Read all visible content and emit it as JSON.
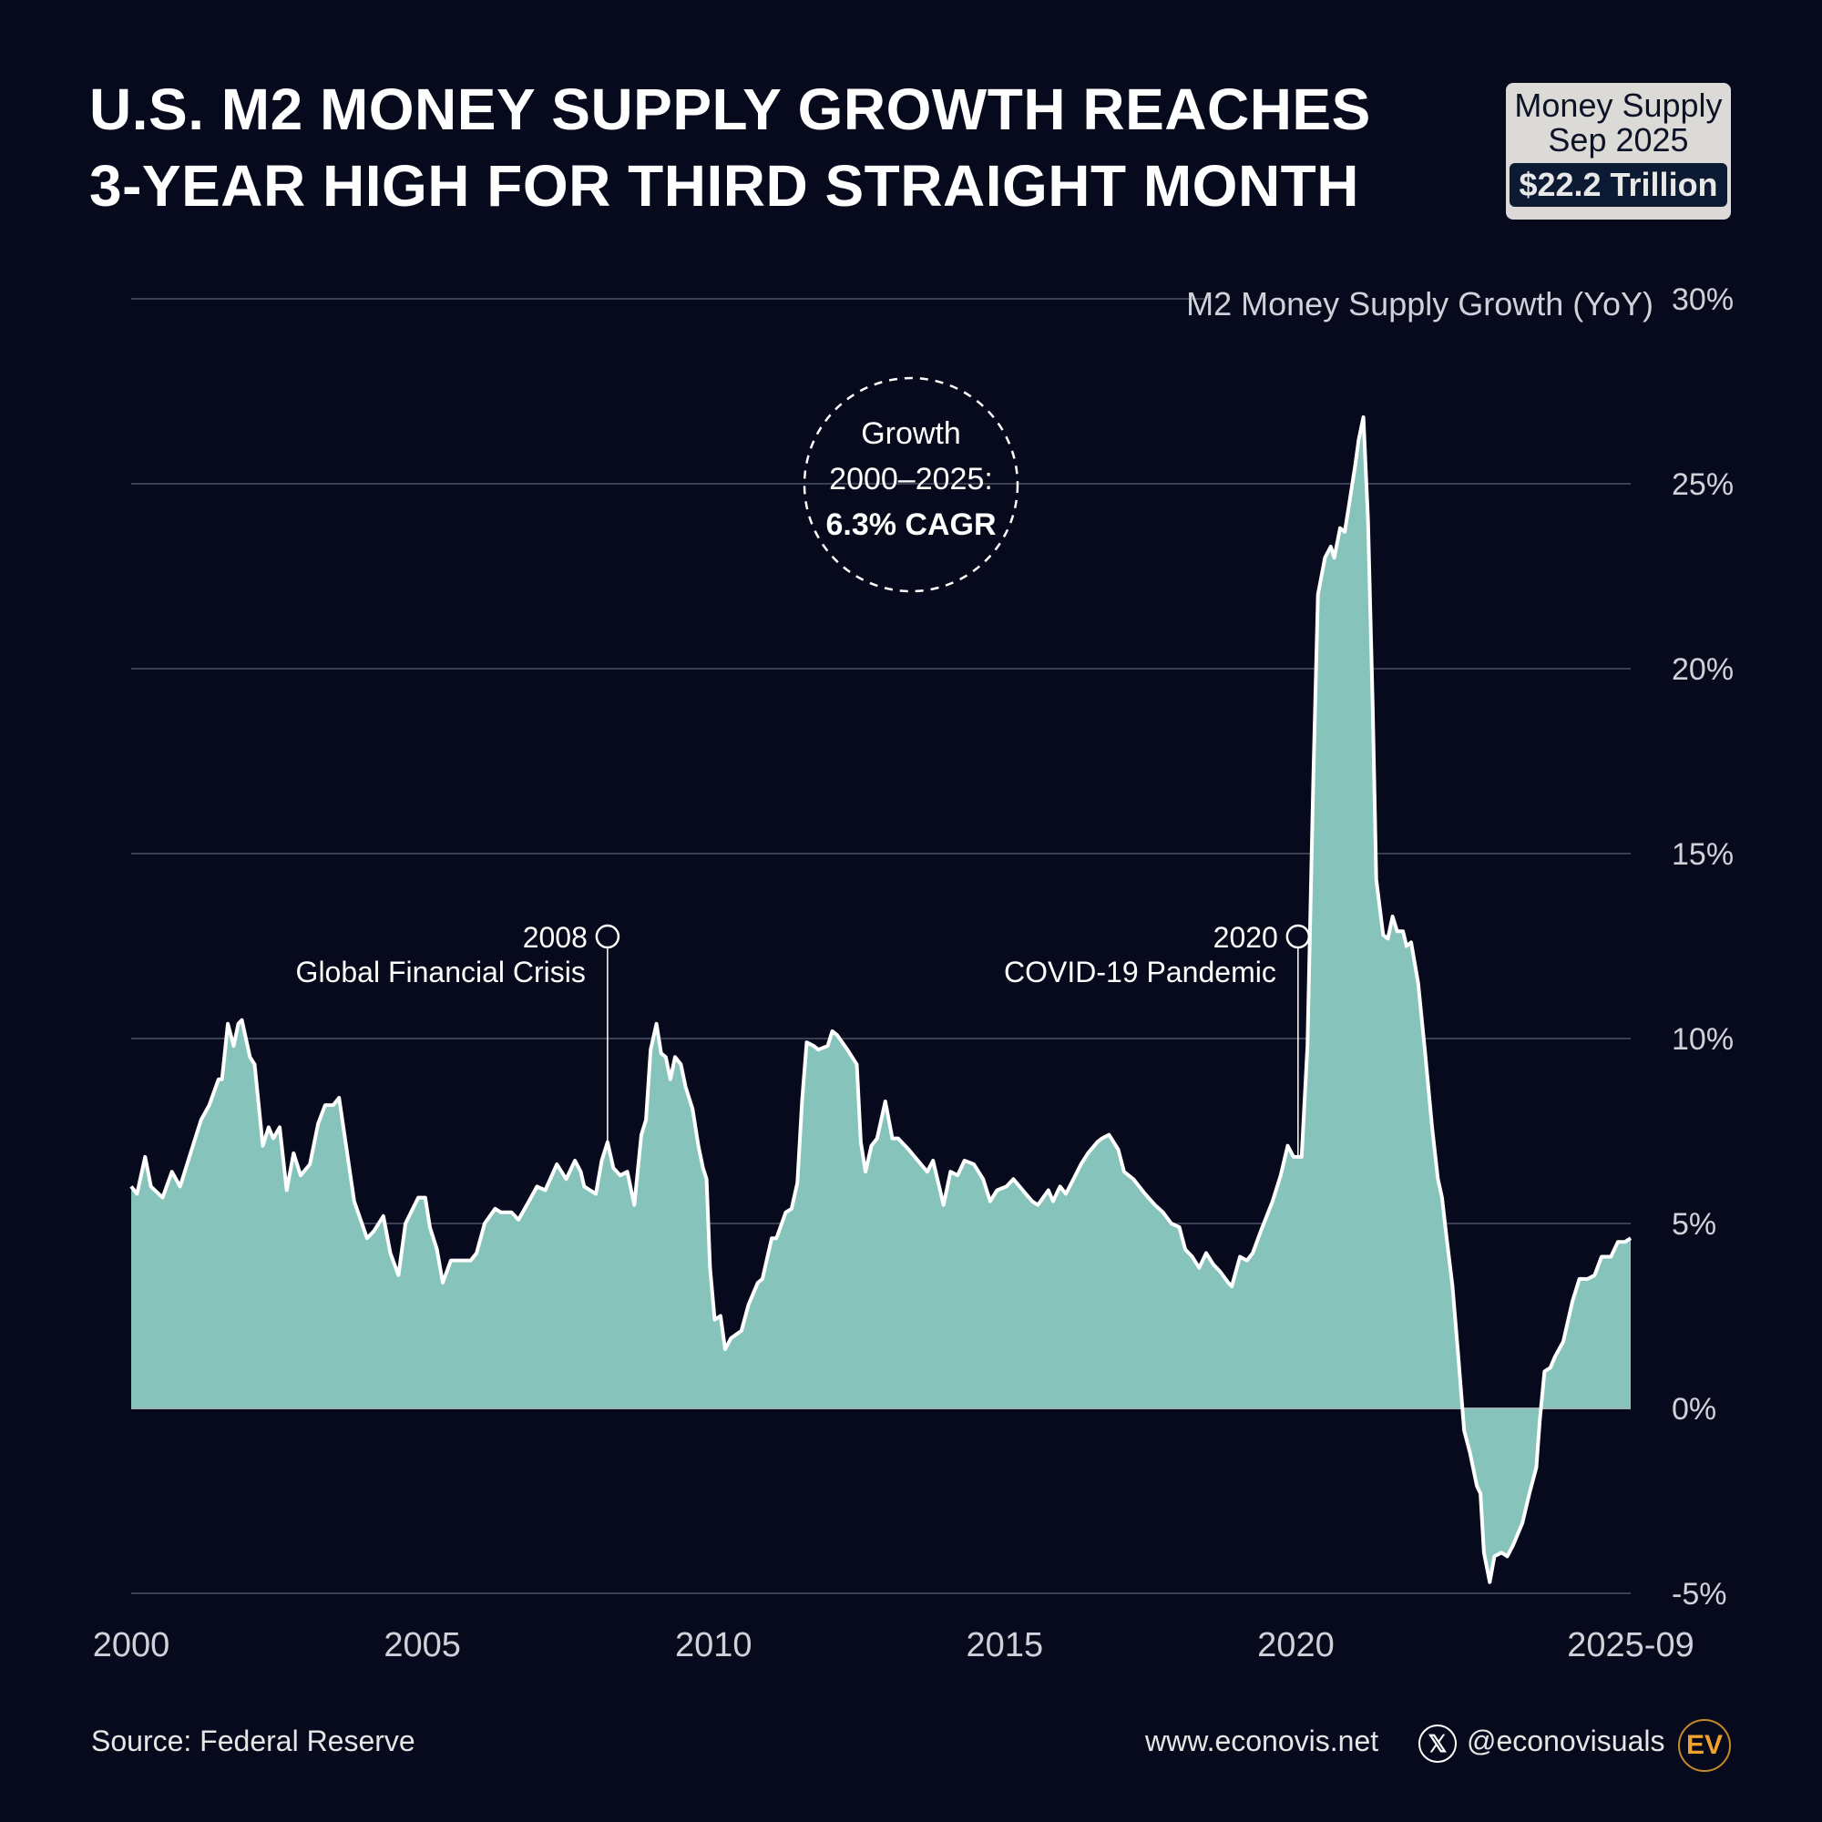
{
  "title": {
    "line1": "U.S. M2 MONEY SUPPLY GROWTH REACHES",
    "line2": "3-YEAR HIGH FOR THIRD STRAIGHT MONTH"
  },
  "badge": {
    "line1": "Money Supply",
    "line2": "Sep 2025",
    "value": "$22.2 Trillion"
  },
  "callout": {
    "line1": "Growth",
    "line2": "2000–2025:",
    "highlight": "6.3% CAGR",
    "highlight_color": "#e0161b"
  },
  "annotations": [
    {
      "year_label": "2008",
      "text": "Global Financial Crisis",
      "x": 2008.18
    },
    {
      "year_label": "2020",
      "text": "COVID-19 Pandemic",
      "x": 2020.1
    }
  ],
  "footer": {
    "source": "Source: Federal Reserve",
    "website": "www.econovis.net",
    "handle": "@econovisuals",
    "logo": "EV"
  },
  "colors": {
    "background": "#060a1c",
    "area_fill": "#86c3bb",
    "line": "#ffffff"
  },
  "chart_data": {
    "type": "area",
    "ylabel": "M2 Money Supply Growth (YoY)",
    "ylim": [
      -5,
      30
    ],
    "yticks": [
      -5,
      0,
      5,
      10,
      15,
      20,
      25,
      30
    ],
    "ytick_labels": [
      "-5%",
      "0%",
      "5%",
      "10%",
      "15%",
      "20%",
      "25%",
      "30%"
    ],
    "xlim": [
      2000,
      2025.75
    ],
    "xticks": [
      2000,
      2005,
      2010,
      2015,
      2020,
      2025.75
    ],
    "xtick_labels": [
      "2000",
      "2005",
      "2010",
      "2015",
      "2020",
      "2025-09"
    ],
    "grid": true,
    "x": [
      2000.0,
      2000.1,
      2000.24,
      2000.34,
      2000.54,
      2000.7,
      2000.84,
      2001.0,
      2001.2,
      2001.34,
      2001.5,
      2001.56,
      2001.66,
      2001.76,
      2001.84,
      2001.9,
      2002.04,
      2002.12,
      2002.26,
      2002.36,
      2002.44,
      2002.55,
      2002.67,
      2002.79,
      2002.91,
      2003.07,
      2003.21,
      2003.33,
      2003.47,
      2003.57,
      2003.83,
      2004.05,
      2004.17,
      2004.33,
      2004.45,
      2004.59,
      2004.71,
      2004.93,
      2005.05,
      2005.13,
      2005.25,
      2005.35,
      2005.49,
      2005.73,
      2005.83,
      2005.93,
      2006.07,
      2006.25,
      2006.35,
      2006.53,
      2006.65,
      2006.83,
      2006.97,
      2007.11,
      2007.31,
      2007.47,
      2007.62,
      2007.72,
      2007.78,
      2007.98,
      2008.08,
      2008.18,
      2008.28,
      2008.4,
      2008.52,
      2008.64,
      2008.76,
      2008.84,
      2008.92,
      2009.02,
      2009.1,
      2009.18,
      2009.26,
      2009.34,
      2009.44,
      2009.52,
      2009.64,
      2009.74,
      2009.82,
      2009.88,
      2009.94,
      2010.02,
      2010.12,
      2010.2,
      2010.3,
      2010.48,
      2010.6,
      2010.76,
      2010.84,
      2011.0,
      2011.08,
      2011.24,
      2011.34,
      2011.44,
      2011.52,
      2011.6,
      2011.72,
      2011.8,
      2011.96,
      2012.04,
      2012.12,
      2012.3,
      2012.46,
      2012.53,
      2012.61,
      2012.71,
      2012.81,
      2012.95,
      2013.07,
      2013.17,
      2013.35,
      2013.51,
      2013.67,
      2013.77,
      2013.95,
      2014.07,
      2014.19,
      2014.31,
      2014.47,
      2014.63,
      2014.75,
      2014.87,
      2015.03,
      2015.15,
      2015.31,
      2015.47,
      2015.57,
      2015.75,
      2015.83,
      2015.95,
      2016.05,
      2016.15,
      2016.31,
      2016.43,
      2016.59,
      2016.67,
      2016.79,
      2016.95,
      2017.05,
      2017.21,
      2017.41,
      2017.58,
      2017.72,
      2017.86,
      2018.0,
      2018.1,
      2018.22,
      2018.34,
      2018.46,
      2018.58,
      2018.7,
      2018.84,
      2018.9,
      2019.04,
      2019.16,
      2019.26,
      2019.4,
      2019.6,
      2019.74,
      2019.86,
      2019.96,
      2020.1,
      2020.2,
      2020.3,
      2020.38,
      2020.5,
      2020.6,
      2020.66,
      2020.76,
      2020.84,
      2020.92,
      2021.02,
      2021.08,
      2021.16,
      2021.24,
      2021.32,
      2021.38,
      2021.5,
      2021.58,
      2021.66,
      2021.74,
      2021.84,
      2021.9,
      2021.98,
      2022.1,
      2022.22,
      2022.34,
      2022.44,
      2022.51,
      2022.59,
      2022.69,
      2022.79,
      2022.89,
      2022.99,
      2023.11,
      2023.17,
      2023.23,
      2023.33,
      2023.41,
      2023.53,
      2023.63,
      2023.73,
      2023.89,
      2024.01,
      2024.13,
      2024.19,
      2024.27,
      2024.37,
      2024.45,
      2024.59,
      2024.75,
      2024.87,
      2025.01,
      2025.13,
      2025.25,
      2025.41,
      2025.53,
      2025.65,
      2025.75
    ],
    "values": [
      6.0,
      5.8,
      6.8,
      6.0,
      5.7,
      6.4,
      6.0,
      6.8,
      7.8,
      8.2,
      8.9,
      8.9,
      10.4,
      9.8,
      10.4,
      10.5,
      9.5,
      9.3,
      7.1,
      7.6,
      7.3,
      7.6,
      5.9,
      6.9,
      6.3,
      6.6,
      7.7,
      8.2,
      8.2,
      8.4,
      5.6,
      4.6,
      4.8,
      5.2,
      4.2,
      3.6,
      5.0,
      5.7,
      5.7,
      4.9,
      4.3,
      3.4,
      4.0,
      4.0,
      4.0,
      4.2,
      5.0,
      5.4,
      5.3,
      5.3,
      5.1,
      5.6,
      6.0,
      5.9,
      6.6,
      6.2,
      6.7,
      6.4,
      6.0,
      5.8,
      6.7,
      7.2,
      6.5,
      6.3,
      6.4,
      5.5,
      7.4,
      7.8,
      9.7,
      10.4,
      9.6,
      9.5,
      8.9,
      9.5,
      9.3,
      8.7,
      8.1,
      7.1,
      6.5,
      6.2,
      3.8,
      2.4,
      2.5,
      1.6,
      1.9,
      2.1,
      2.8,
      3.4,
      3.5,
      4.6,
      4.6,
      5.3,
      5.4,
      6.1,
      8.3,
      9.9,
      9.8,
      9.7,
      9.8,
      10.2,
      10.1,
      9.7,
      9.3,
      7.2,
      6.4,
      7.1,
      7.3,
      8.3,
      7.3,
      7.3,
      7.0,
      6.7,
      6.4,
      6.7,
      5.5,
      6.4,
      6.3,
      6.7,
      6.6,
      6.2,
      5.6,
      5.9,
      6.0,
      6.2,
      5.9,
      5.6,
      5.5,
      5.9,
      5.6,
      6.0,
      5.8,
      6.1,
      6.6,
      6.9,
      7.2,
      7.3,
      7.4,
      7.0,
      6.4,
      6.2,
      5.8,
      5.5,
      5.3,
      5.0,
      4.9,
      4.3,
      4.1,
      3.8,
      4.2,
      3.9,
      3.7,
      3.4,
      3.3,
      4.1,
      4.0,
      4.2,
      4.8,
      5.6,
      6.3,
      7.1,
      6.8,
      6.8,
      9.8,
      17.0,
      22.0,
      23.0,
      23.3,
      23.0,
      23.8,
      23.7,
      24.5,
      25.5,
      26.2,
      26.8,
      24.0,
      19.0,
      14.3,
      12.8,
      12.7,
      13.3,
      12.9,
      12.9,
      12.5,
      12.6,
      11.5,
      9.6,
      7.6,
      6.2,
      5.7,
      4.6,
      3.3,
      1.4,
      -0.6,
      -1.2,
      -2.1,
      -2.3,
      -3.9,
      -4.7,
      -4.0,
      -3.9,
      -4.0,
      -3.7,
      -3.1,
      -2.3,
      -1.6,
      -0.3,
      1.0,
      1.1,
      1.4,
      1.8,
      2.9,
      3.5,
      3.5,
      3.6,
      4.1,
      4.1,
      4.5,
      4.5,
      4.6
    ]
  }
}
